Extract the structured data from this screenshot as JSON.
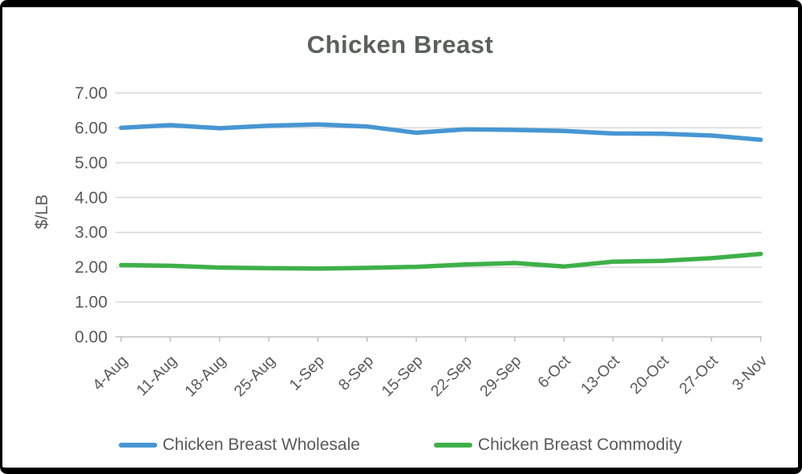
{
  "chart_data": {
    "type": "line",
    "title": "Chicken Breast",
    "ylabel": "$/LB",
    "xlabel": "",
    "ylim": [
      0,
      7
    ],
    "ytick_step": 1,
    "ytick_decimals": 2,
    "grid": true,
    "legend_position": "bottom",
    "categories": [
      "4-Aug",
      "11-Aug",
      "18-Aug",
      "25-Aug",
      "1-Sep",
      "8-Sep",
      "15-Sep",
      "22-Sep",
      "29-Sep",
      "6-Oct",
      "13-Oct",
      "20-Oct",
      "27-Oct",
      "3-Nov"
    ],
    "series": [
      {
        "name": "Chicken Breast Wholesale",
        "color": "#4796D2",
        "values": [
          6.0,
          6.08,
          5.99,
          6.06,
          6.1,
          6.04,
          5.86,
          5.96,
          5.94,
          5.91,
          5.84,
          5.83,
          5.78,
          5.66
        ]
      },
      {
        "name": "Chicken Breast Commodity",
        "color": "#3EB049",
        "values": [
          2.06,
          2.04,
          1.99,
          1.97,
          1.96,
          1.98,
          2.01,
          2.08,
          2.12,
          2.02,
          2.16,
          2.18,
          2.26,
          2.38
        ]
      }
    ],
    "colors": {
      "title_text": "#5A605A",
      "axis_text": "#595959",
      "gridline": "#D9D9D9",
      "axis_line": "#C0C0C0"
    }
  }
}
